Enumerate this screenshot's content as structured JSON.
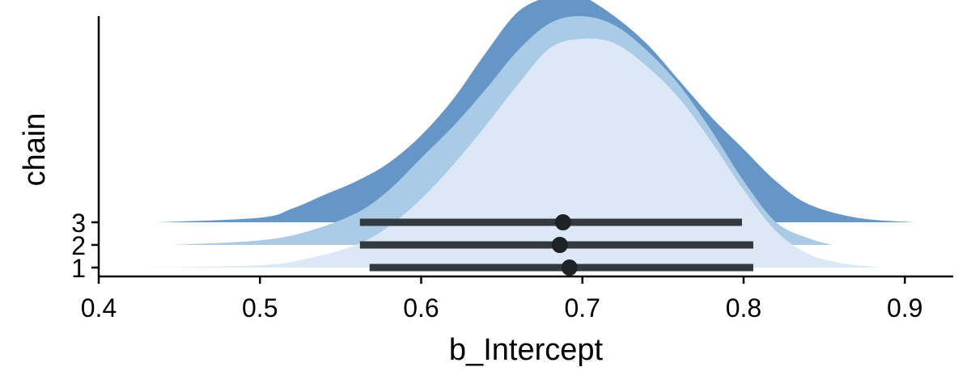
{
  "chart_data": {
    "type": "area",
    "xlabel": "b_Intercept",
    "ylabel": "chain",
    "xlim": [
      0.4,
      0.93
    ],
    "x_ticks": [
      "0.4",
      "0.5",
      "0.6",
      "0.7",
      "0.8",
      "0.9"
    ],
    "x_tick_values": [
      0.4,
      0.5,
      0.6,
      0.7,
      0.8,
      0.9
    ],
    "y_ticks": [
      "1",
      "2",
      "3"
    ],
    "grid": false,
    "legend": "none",
    "series": [
      {
        "name": "1",
        "color": "#dce8f5",
        "interval": [
          0.568,
          0.806
        ],
        "point": 0.692,
        "density_x": [
          0.43,
          0.5,
          0.53,
          0.56,
          0.58,
          0.6,
          0.62,
          0.64,
          0.66,
          0.68,
          0.7,
          0.72,
          0.74,
          0.76,
          0.78,
          0.8,
          0.82,
          0.84,
          0.86,
          0.885
        ],
        "density_y": [
          0.0,
          0.01,
          0.04,
          0.1,
          0.18,
          0.3,
          0.45,
          0.62,
          0.8,
          0.96,
          1.0,
          0.98,
          0.88,
          0.74,
          0.55,
          0.34,
          0.16,
          0.06,
          0.02,
          0.0
        ]
      },
      {
        "name": "2",
        "color": "#a9cbe5",
        "interval": [
          0.562,
          0.806
        ],
        "point": 0.686,
        "density_x": [
          0.445,
          0.5,
          0.53,
          0.56,
          0.58,
          0.6,
          0.62,
          0.64,
          0.66,
          0.68,
          0.7,
          0.72,
          0.74,
          0.76,
          0.78,
          0.8,
          0.82,
          0.84,
          0.855
        ],
        "density_y": [
          0.0,
          0.02,
          0.06,
          0.14,
          0.24,
          0.38,
          0.52,
          0.68,
          0.85,
          0.97,
          1.0,
          0.96,
          0.85,
          0.7,
          0.5,
          0.28,
          0.1,
          0.03,
          0.0
        ]
      },
      {
        "name": "3",
        "color": "#6596c7",
        "interval": [
          0.562,
          0.799
        ],
        "point": 0.688,
        "density_x": [
          0.437,
          0.5,
          0.52,
          0.54,
          0.56,
          0.58,
          0.6,
          0.62,
          0.64,
          0.66,
          0.68,
          0.69,
          0.7,
          0.72,
          0.74,
          0.76,
          0.78,
          0.8,
          0.82,
          0.84,
          0.87,
          0.906
        ],
        "density_y": [
          0.0,
          0.02,
          0.06,
          0.12,
          0.18,
          0.26,
          0.38,
          0.54,
          0.74,
          0.92,
          0.99,
          1.0,
          0.99,
          0.9,
          0.78,
          0.62,
          0.46,
          0.32,
          0.18,
          0.08,
          0.02,
          0.0
        ]
      }
    ]
  }
}
